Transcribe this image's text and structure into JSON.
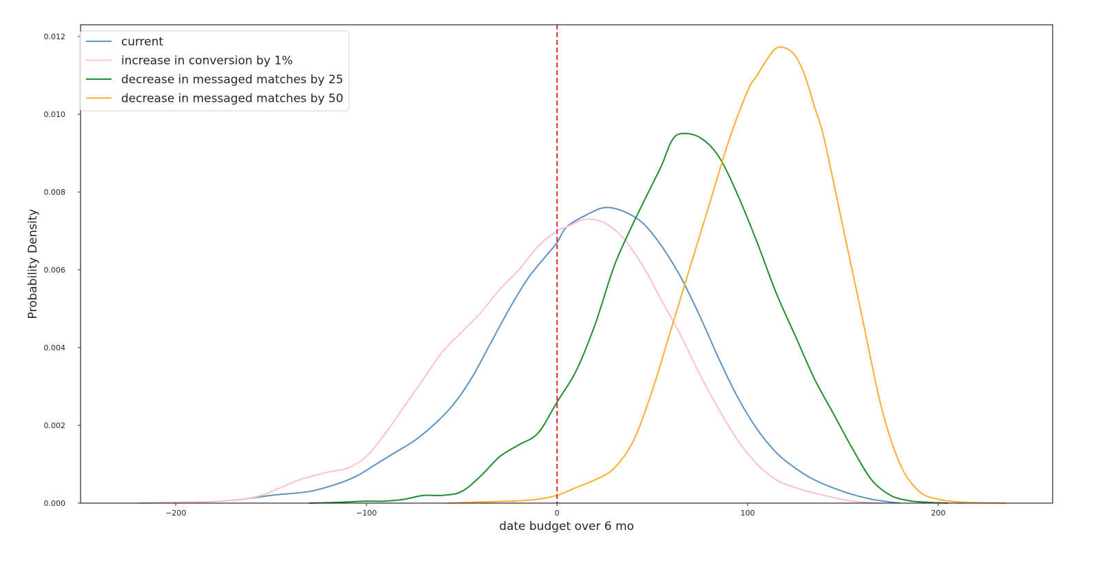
{
  "chart_data": {
    "type": "line",
    "title": "",
    "xlabel": "date budget over 6 mo",
    "ylabel": "Probability Density",
    "xlim": [
      -250,
      260
    ],
    "ylim": [
      0,
      0.0123
    ],
    "x_ticks": [
      -200,
      -100,
      0,
      100,
      200
    ],
    "x_tick_labels": [
      "−200",
      "−100",
      "0",
      "100",
      "200"
    ],
    "y_ticks": [
      0,
      0.002,
      0.004,
      0.006,
      0.008,
      0.01,
      0.012
    ],
    "y_tick_labels": [
      "0.000",
      "0.002",
      "0.004",
      "0.006",
      "0.008",
      "0.010",
      "0.012"
    ],
    "grid": false,
    "legend_position": "top-left",
    "reference_line": {
      "x": 0,
      "color": "#e8272a",
      "style": "dashed"
    },
    "series": [
      {
        "name": "current",
        "color": "#5b92c2",
        "x": [
          -220,
          -200,
          -180,
          -165,
          -150,
          -130,
          -115,
          -105,
          -95,
          -85,
          -75,
          -65,
          -55,
          -45,
          -35,
          -25,
          -15,
          -5,
          0,
          5,
          15,
          25,
          35,
          45,
          55,
          65,
          75,
          85,
          95,
          105,
          115,
          125,
          135,
          150,
          165,
          180
        ],
        "y": [
          0.0,
          2e-05,
          4e-05,
          0.0001,
          0.0002,
          0.0003,
          0.0005,
          0.0007,
          0.001,
          0.0013,
          0.0016,
          0.002,
          0.0025,
          0.0032,
          0.0041,
          0.005,
          0.0058,
          0.0064,
          0.0067,
          0.0071,
          0.0074,
          0.0076,
          0.0075,
          0.0072,
          0.0066,
          0.0058,
          0.0048,
          0.0037,
          0.0027,
          0.0019,
          0.0013,
          0.0009,
          0.0006,
          0.0003,
          0.0001,
          0.0
        ]
      },
      {
        "name": "increase in conversion by 1%",
        "color": "#ffc0cb",
        "x": [
          -220,
          -200,
          -180,
          -165,
          -155,
          -145,
          -135,
          -120,
          -110,
          -100,
          -90,
          -80,
          -70,
          -60,
          -50,
          -40,
          -30,
          -20,
          -10,
          0,
          5,
          15,
          25,
          35,
          45,
          55,
          65,
          75,
          85,
          95,
          105,
          115,
          125,
          140,
          155,
          170
        ],
        "y": [
          0.0,
          2e-05,
          4e-05,
          0.0001,
          0.0002,
          0.0004,
          0.0006,
          0.0008,
          0.0009,
          0.0012,
          0.0018,
          0.0025,
          0.0032,
          0.0039,
          0.0044,
          0.0049,
          0.0055,
          0.006,
          0.0066,
          0.007,
          0.0071,
          0.0073,
          0.0072,
          0.0068,
          0.0061,
          0.0052,
          0.0043,
          0.0033,
          0.0024,
          0.0016,
          0.001,
          0.0006,
          0.0004,
          0.0002,
          5e-05,
          0.0
        ]
      },
      {
        "name": "decrease in messaged matches by 25",
        "color": "#1f8f2b",
        "x": [
          -130,
          -115,
          -100,
          -90,
          -80,
          -70,
          -60,
          -50,
          -40,
          -30,
          -20,
          -10,
          0,
          10,
          20,
          30,
          40,
          50,
          55,
          60,
          65,
          75,
          85,
          95,
          105,
          115,
          125,
          135,
          145,
          155,
          165,
          175,
          185,
          195,
          205
        ],
        "y": [
          0.0,
          2e-05,
          5e-05,
          5e-05,
          0.0001,
          0.0002,
          0.0002,
          0.0003,
          0.0007,
          0.0012,
          0.0015,
          0.0018,
          0.0026,
          0.0034,
          0.0046,
          0.0061,
          0.0072,
          0.0082,
          0.0087,
          0.0093,
          0.0095,
          0.0094,
          0.0089,
          0.0079,
          0.0067,
          0.0054,
          0.0043,
          0.0032,
          0.0023,
          0.0014,
          0.0006,
          0.0002,
          6e-05,
          2e-05,
          0.0
        ]
      },
      {
        "name": "decrease in messaged matches by 50",
        "color": "#ffac30",
        "x": [
          -57,
          -40,
          -20,
          -10,
          0,
          10,
          20,
          30,
          40,
          50,
          60,
          70,
          80,
          90,
          100,
          105,
          110,
          115,
          120,
          125,
          130,
          135,
          140,
          150,
          160,
          170,
          180,
          190,
          200,
          210,
          220,
          235
        ],
        "y": [
          0.0,
          3e-05,
          6e-05,
          0.0001,
          0.0002,
          0.0004,
          0.0006,
          0.0009,
          0.0016,
          0.0029,
          0.0045,
          0.0061,
          0.0077,
          0.0093,
          0.0106,
          0.011,
          0.0114,
          0.0117,
          0.0117,
          0.0115,
          0.011,
          0.0102,
          0.0094,
          0.0071,
          0.0048,
          0.0025,
          0.001,
          0.0003,
          0.0001,
          3e-05,
          1e-05,
          0.0
        ]
      }
    ]
  }
}
